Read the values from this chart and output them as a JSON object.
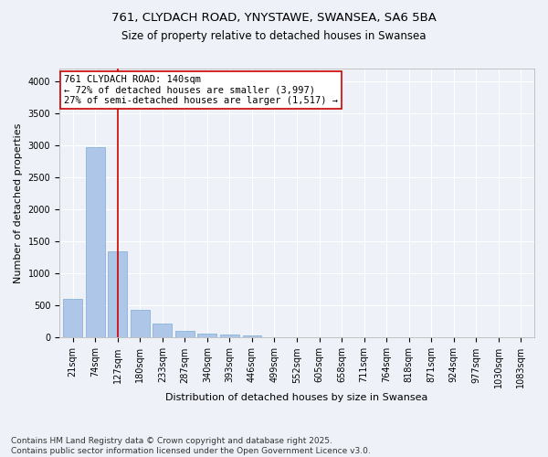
{
  "title1": "761, CLYDACH ROAD, YNYSTAWE, SWANSEA, SA6 5BA",
  "title2": "Size of property relative to detached houses in Swansea",
  "xlabel": "Distribution of detached houses by size in Swansea",
  "ylabel": "Number of detached properties",
  "categories": [
    "21sqm",
    "74sqm",
    "127sqm",
    "180sqm",
    "233sqm",
    "287sqm",
    "340sqm",
    "393sqm",
    "446sqm",
    "499sqm",
    "552sqm",
    "605sqm",
    "658sqm",
    "711sqm",
    "764sqm",
    "818sqm",
    "871sqm",
    "924sqm",
    "977sqm",
    "1030sqm",
    "1083sqm"
  ],
  "values": [
    600,
    2970,
    1350,
    430,
    220,
    100,
    70,
    50,
    40,
    0,
    0,
    0,
    0,
    0,
    0,
    0,
    0,
    0,
    0,
    0,
    0
  ],
  "bar_color": "#aec6e8",
  "bar_edge_color": "#7aadd4",
  "vline_x_index": 2,
  "vline_color": "#cc0000",
  "annotation_text": "761 CLYDACH ROAD: 140sqm\n← 72% of detached houses are smaller (3,997)\n27% of semi-detached houses are larger (1,517) →",
  "annotation_box_color": "#ffffff",
  "annotation_box_edge_color": "#cc0000",
  "ylim": [
    0,
    4200
  ],
  "yticks": [
    0,
    500,
    1000,
    1500,
    2000,
    2500,
    3000,
    3500,
    4000
  ],
  "footnote1": "Contains HM Land Registry data © Crown copyright and database right 2025.",
  "footnote2": "Contains public sector information licensed under the Open Government Licence v3.0.",
  "background_color": "#eef2f8",
  "plot_bg_color": "#eef2f8",
  "grid_color": "#ffffff",
  "title_fontsize": 9.5,
  "subtitle_fontsize": 8.5,
  "axis_label_fontsize": 8,
  "tick_fontsize": 7,
  "annotation_fontsize": 7.5,
  "footnote_fontsize": 6.5
}
